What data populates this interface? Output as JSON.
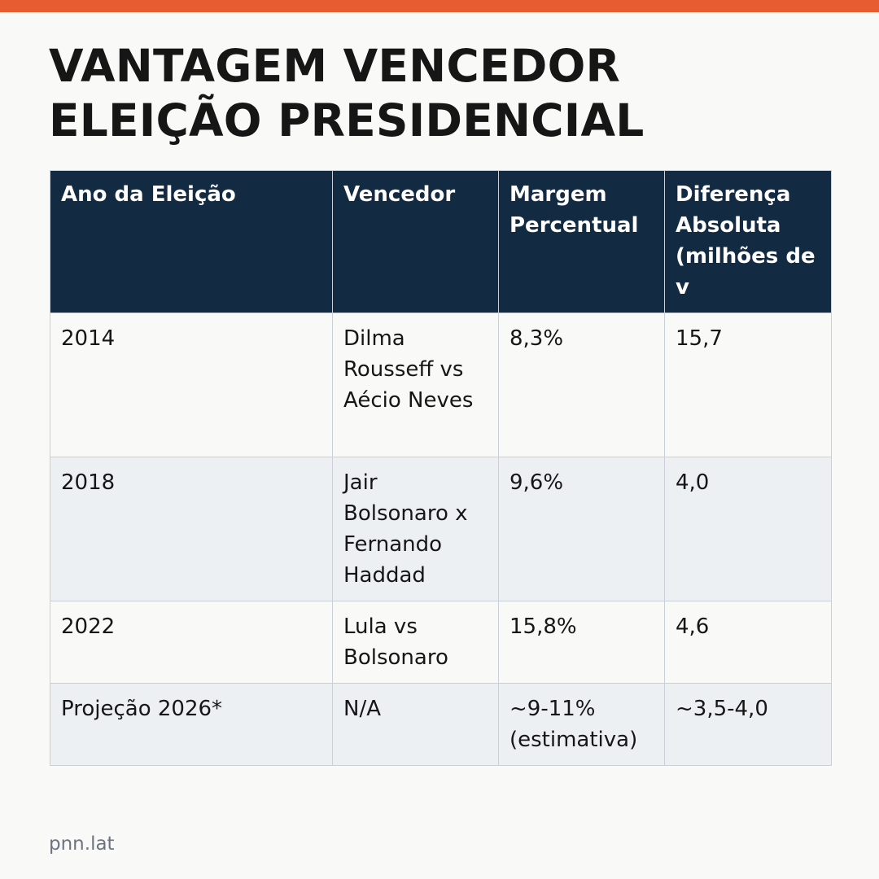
{
  "accent_color": "#e85c32",
  "header_color": "#132a43",
  "title": {
    "line1": "VANTAGEM VENCEDOR",
    "line2": "ELEIÇÃO PRESIDENCIAL"
  },
  "table": {
    "headers": {
      "year": "Ano da Eleição",
      "winner": "Vencedor",
      "margin": "Margem Percentual",
      "difference": "Diferença Absoluta (milhões de v"
    },
    "rows": [
      {
        "year": "2014",
        "winner": "Dilma Rousseff vs Aécio Neves",
        "margin": "8,3%",
        "difference": "15,7"
      },
      {
        "year": "2018",
        "winner": "Jair Bolsonaro x Fernando Haddad",
        "margin": "9,6%",
        "difference": "4,0"
      },
      {
        "year": "2022",
        "winner": "Lula vs Bolsonaro",
        "margin": "15,8%",
        "difference": "4,6"
      },
      {
        "year": "Projeção 2026*",
        "winner": "N/A",
        "margin": "~9-11% (estimativa)",
        "difference": "~3,5-4,0"
      }
    ]
  },
  "footer": "pnn.lat"
}
